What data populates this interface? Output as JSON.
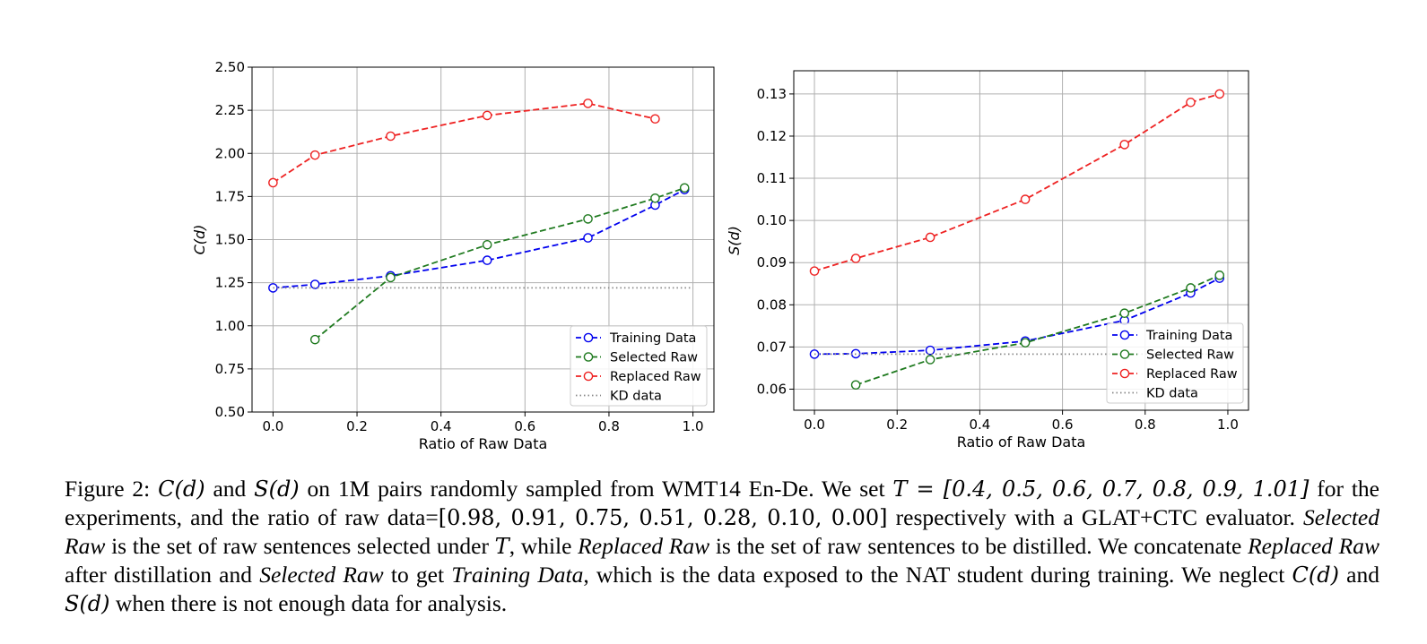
{
  "chart_data": [
    {
      "type": "line",
      "xlabel": "Ratio of Raw Data",
      "ylabel": "C(d)",
      "xlim": [
        -0.05,
        1.05
      ],
      "ylim": [
        0.5,
        2.5
      ],
      "xticks": [
        0.0,
        0.2,
        0.4,
        0.6,
        0.8,
        1.0
      ],
      "xtick_labels": [
        "0.0",
        "0.2",
        "0.4",
        "0.6",
        "0.8",
        "1.0"
      ],
      "yticks": [
        0.5,
        0.75,
        1.0,
        1.25,
        1.5,
        1.75,
        2.0,
        2.25,
        2.5
      ],
      "ytick_labels": [
        "0.50",
        "0.75",
        "1.00",
        "1.25",
        "1.50",
        "1.75",
        "2.00",
        "2.25",
        "2.50"
      ],
      "grid": true,
      "legend": "lower-right",
      "series": [
        {
          "name": "Training Data",
          "color": "#0000ee",
          "style": "dashed",
          "marker": "circle",
          "x": [
            0.0,
            0.1,
            0.28,
            0.51,
            0.75,
            0.91,
            0.98
          ],
          "y": [
            1.22,
            1.24,
            1.29,
            1.38,
            1.51,
            1.7,
            1.79
          ]
        },
        {
          "name": "Selected Raw",
          "color": "#1f7a1f",
          "style": "dashed",
          "marker": "circle",
          "x": [
            0.1,
            0.28,
            0.51,
            0.75,
            0.91,
            0.98
          ],
          "y": [
            0.92,
            1.28,
            1.47,
            1.62,
            1.74,
            1.8
          ]
        },
        {
          "name": "Replaced Raw",
          "color": "#ee2222",
          "style": "dashed",
          "marker": "circle",
          "x": [
            0.0,
            0.1,
            0.28,
            0.51,
            0.75,
            0.91
          ],
          "y": [
            1.83,
            1.99,
            2.1,
            2.22,
            2.29,
            2.2
          ]
        },
        {
          "name": "KD data",
          "color": "#888888",
          "style": "dotted",
          "marker": "none",
          "x": [
            0.0,
            1.0
          ],
          "y": [
            1.22,
            1.22
          ]
        }
      ]
    },
    {
      "type": "line",
      "xlabel": "Ratio of Raw Data",
      "ylabel": "S(d)",
      "xlim": [
        -0.05,
        1.05
      ],
      "ylim": [
        0.055,
        0.1355
      ],
      "xticks": [
        0.0,
        0.2,
        0.4,
        0.6,
        0.8,
        1.0
      ],
      "xtick_labels": [
        "0.0",
        "0.2",
        "0.4",
        "0.6",
        "0.8",
        "1.0"
      ],
      "yticks": [
        0.06,
        0.07,
        0.08,
        0.09,
        0.1,
        0.11,
        0.12,
        0.13
      ],
      "ytick_labels": [
        "0.06",
        "0.07",
        "0.08",
        "0.09",
        "0.10",
        "0.11",
        "0.12",
        "0.13"
      ],
      "grid": true,
      "legend": "lower-right",
      "series": [
        {
          "name": "Training Data",
          "color": "#0000ee",
          "style": "dashed",
          "marker": "circle",
          "x": [
            0.0,
            0.1,
            0.28,
            0.51,
            0.75,
            0.91,
            0.98
          ],
          "y": [
            0.0683,
            0.0684,
            0.0692,
            0.0714,
            0.0763,
            0.0828,
            0.0863
          ]
        },
        {
          "name": "Selected Raw",
          "color": "#1f7a1f",
          "style": "dashed",
          "marker": "circle",
          "x": [
            0.1,
            0.28,
            0.51,
            0.75,
            0.91,
            0.98
          ],
          "y": [
            0.061,
            0.067,
            0.071,
            0.078,
            0.084,
            0.087
          ]
        },
        {
          "name": "Replaced Raw",
          "color": "#ee2222",
          "style": "dashed",
          "marker": "circle",
          "x": [
            0.0,
            0.1,
            0.28,
            0.51,
            0.75,
            0.91,
            0.98
          ],
          "y": [
            0.088,
            0.091,
            0.096,
            0.105,
            0.118,
            0.128,
            0.13
          ]
        },
        {
          "name": "KD data",
          "color": "#888888",
          "style": "dotted",
          "marker": "none",
          "x": [
            0.0,
            1.0
          ],
          "y": [
            0.0683,
            0.0683
          ]
        }
      ]
    }
  ],
  "caption": {
    "p1": "Figure 2: ",
    "c_d": "C(d)",
    "p2": " and ",
    "s_d": "S(d)",
    "p3": " on 1M pairs randomly sampled from WMT14 En-De. We set ",
    "t_eq": "T = [0.4, 0.5, 0.6, 0.7, 0.8, 0.9, 1.01]",
    "p4": " for the experiments, and the ratio of raw data=",
    "ratio_list": "[0.98, 0.91, 0.75, 0.51, 0.28, 0.10, 0.00]",
    "p5": " respectively with a GLAT+CTC evaluator. ",
    "selected_raw": "Selected Raw",
    "p6": " is the set of raw sentences selected under ",
    "t": "T",
    "p7": ", while ",
    "replaced_raw": "Replaced Raw",
    "p8": " is the set of raw sentences to be distilled. We concatenate ",
    "replaced_raw_2": "Replaced Raw",
    "p9": " after distillation and ",
    "selected_raw_2": "Selected Raw",
    "p10": " to get ",
    "training_data": "Training Data",
    "p11": ", which is the data exposed to the NAT student during training. We neglect ",
    "c_d_2": "C(d)",
    "p12": " and ",
    "s_d_2": "S(d)",
    "p13": " when there is not enough data for analysis."
  }
}
